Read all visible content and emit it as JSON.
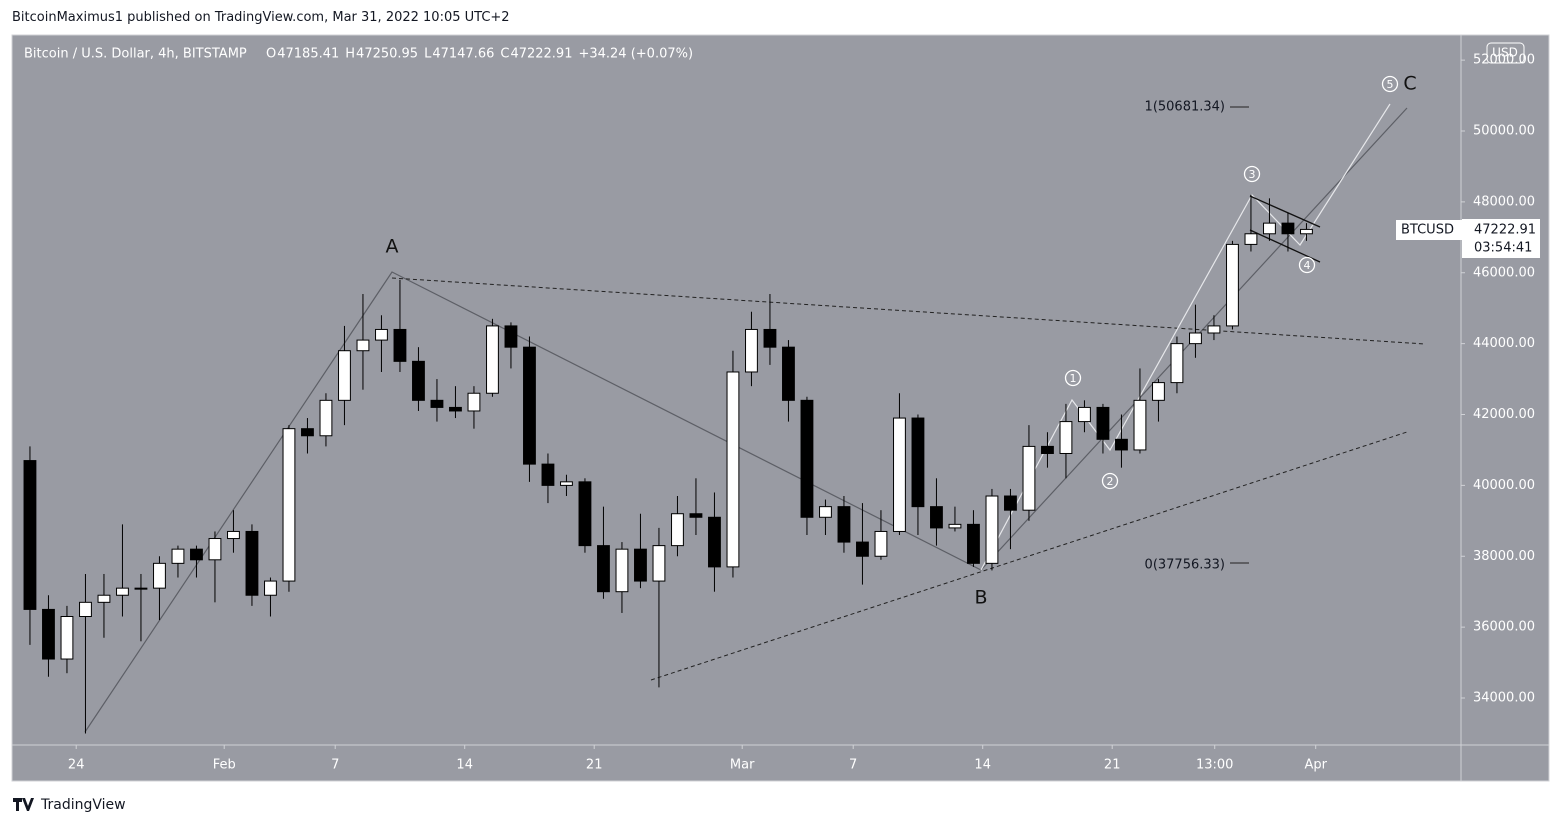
{
  "header": {
    "publisher": "BitcoinMaximus1 published on TradingView.com, Mar 31, 2022 10:05 UTC+2"
  },
  "footer": {
    "brand": "TradingView"
  },
  "chart_data": {
    "type": "candlestick",
    "title": "Bitcoin / U.S. Dollar, 4h, BITSTAMP",
    "legend": {
      "o_label": "O",
      "o": 47185.41,
      "h_label": "H",
      "h": 47250.95,
      "l_label": "L",
      "l": 47147.66,
      "c_label": "C",
      "c": 47222.91,
      "change": "+34.24 (+0.07%)"
    },
    "currency": "USD",
    "symbol": "BTCUSD",
    "last_price": 47222.91,
    "countdown": "03:54:41",
    "x": [
      "2022-01-21",
      "2022-01-22",
      "2022-01-23",
      "2022-01-24",
      "2022-01-25",
      "2022-01-26",
      "2022-01-27",
      "2022-01-28",
      "2022-01-29",
      "2022-01-30",
      "2022-01-31",
      "2022-02-01",
      "2022-02-02",
      "2022-02-03",
      "2022-02-04",
      "2022-02-05",
      "2022-02-06",
      "2022-02-07",
      "2022-02-08",
      "2022-02-09",
      "2022-02-10",
      "2022-02-11",
      "2022-02-12",
      "2022-02-13",
      "2022-02-14",
      "2022-02-15",
      "2022-02-16",
      "2022-02-17",
      "2022-02-18",
      "2022-02-19",
      "2022-02-20",
      "2022-02-21",
      "2022-02-22",
      "2022-02-23",
      "2022-02-24",
      "2022-02-25",
      "2022-02-26",
      "2022-02-27",
      "2022-02-28",
      "2022-03-01",
      "2022-03-02",
      "2022-03-03",
      "2022-03-04",
      "2022-03-05",
      "2022-03-06",
      "2022-03-07",
      "2022-03-08",
      "2022-03-09",
      "2022-03-10",
      "2022-03-11",
      "2022-03-12",
      "2022-03-13",
      "2022-03-14",
      "2022-03-15",
      "2022-03-16",
      "2022-03-17",
      "2022-03-18",
      "2022-03-19",
      "2022-03-20",
      "2022-03-21",
      "2022-03-22",
      "2022-03-23",
      "2022-03-24",
      "2022-03-25",
      "2022-03-26",
      "2022-03-27",
      "2022-03-28",
      "2022-03-29",
      "2022-03-30",
      "2022-03-31"
    ],
    "open": [
      40700,
      36500,
      35100,
      36300,
      36700,
      36900,
      37100,
      37100,
      37800,
      38200,
      37900,
      38500,
      38700,
      36900,
      37300,
      41600,
      41400,
      42400,
      43800,
      44100,
      44400,
      43500,
      42400,
      42200,
      42100,
      42600,
      44500,
      43900,
      40600,
      40000,
      40100,
      38300,
      37000,
      38200,
      37300,
      38300,
      39200,
      39100,
      37700,
      43200,
      44400,
      43900,
      42400,
      39100,
      39400,
      38400,
      38000,
      38700,
      41900,
      39400,
      38800,
      38900,
      37800,
      39700,
      39300,
      41100,
      40900,
      41800,
      42200,
      41300,
      41000,
      42400,
      42900,
      44000,
      44300,
      44500,
      46800,
      47100,
      47400,
      47100
    ],
    "high": [
      41100,
      36900,
      36600,
      37500,
      37500,
      38900,
      37500,
      38000,
      38300,
      38300,
      38700,
      39300,
      38900,
      37400,
      41700,
      41900,
      42600,
      44500,
      45400,
      44800,
      45800,
      43900,
      43000,
      42800,
      42800,
      44700,
      44600,
      44200,
      40900,
      40300,
      40200,
      39400,
      38400,
      39200,
      38800,
      39700,
      40200,
      39800,
      43800,
      44900,
      45400,
      44100,
      42500,
      39600,
      39700,
      39500,
      39300,
      42600,
      42000,
      40200,
      39400,
      39300,
      39900,
      39900,
      41700,
      41500,
      42300,
      42400,
      42300,
      42000,
      43300,
      43000,
      44200,
      45100,
      44800,
      46900,
      48200,
      48100,
      47700,
      47400
    ],
    "low": [
      35500,
      34600,
      34700,
      33000,
      35700,
      36300,
      35600,
      36200,
      37400,
      37400,
      36700,
      38100,
      36600,
      36300,
      37000,
      40900,
      41100,
      41700,
      42700,
      43200,
      43200,
      42100,
      41800,
      41900,
      41600,
      42500,
      43300,
      40100,
      39500,
      39700,
      38100,
      36800,
      36400,
      37100,
      34300,
      38000,
      38600,
      37000,
      37400,
      42800,
      43400,
      41800,
      38600,
      38600,
      38100,
      37200,
      37900,
      38600,
      38600,
      38300,
      38700,
      37700,
      37600,
      38200,
      39000,
      40500,
      40200,
      41500,
      40900,
      40500,
      40900,
      41800,
      42600,
      43600,
      44100,
      44400,
      46600,
      46900,
      46600,
      46900
    ],
    "close": [
      36500,
      35100,
      36300,
      36700,
      36900,
      37100,
      37100,
      37800,
      38200,
      37900,
      38500,
      38700,
      36900,
      37300,
      41600,
      41400,
      42400,
      43800,
      44100,
      44400,
      43500,
      42400,
      42200,
      42100,
      42600,
      44500,
      43900,
      40600,
      40000,
      40100,
      38300,
      37000,
      38200,
      37300,
      38300,
      39200,
      39100,
      37700,
      43200,
      44400,
      43900,
      42400,
      39100,
      39400,
      38400,
      38000,
      38700,
      41900,
      39400,
      38800,
      38900,
      37800,
      39700,
      39300,
      41100,
      40900,
      41800,
      42200,
      41300,
      41000,
      42400,
      42900,
      44000,
      44300,
      44500,
      46800,
      47100,
      47400,
      47100,
      47222.91
    ],
    "up_color": "#ffffff",
    "down_color": "#000000",
    "xlim": [
      "2022-01-20T14:00",
      "2022-04-08T20:30"
    ],
    "xticks": [
      {
        "value": "2022-01-24",
        "label": "24"
      },
      {
        "value": "2022-02-01",
        "label": "Feb"
      },
      {
        "value": "2022-02-07",
        "label": "7"
      },
      {
        "value": "2022-02-14",
        "label": "14"
      },
      {
        "value": "2022-02-21",
        "label": "21"
      },
      {
        "value": "2022-03-01",
        "label": "Mar"
      },
      {
        "value": "2022-03-07",
        "label": "7"
      },
      {
        "value": "2022-03-14",
        "label": "14"
      },
      {
        "value": "2022-03-21",
        "label": "21"
      },
      {
        "value": "2022-03-26T13:00",
        "label": "13:00"
      },
      {
        "value": "2022-04-01",
        "label": "Apr"
      }
    ],
    "ylim": [
      32674,
      52709
    ],
    "yticks": [
      {
        "value": 34000,
        "label": "34000.00"
      },
      {
        "value": 36000,
        "label": "36000.00"
      },
      {
        "value": 38000,
        "label": "38000.00"
      },
      {
        "value": 40000,
        "label": "40000.00"
      },
      {
        "value": 42000,
        "label": "42000.00"
      },
      {
        "value": 44000,
        "label": "44000.00"
      },
      {
        "value": 46000,
        "label": "46000.00"
      },
      {
        "value": 48000,
        "label": "48000.00"
      },
      {
        "value": 50000,
        "label": "50000.00"
      },
      {
        "value": 52000,
        "label": "52000.00"
      }
    ],
    "fib_levels": [
      {
        "value": 50681.34,
        "label": "1(50681.34)"
      },
      {
        "value": 37756.33,
        "label": "0(37756.33)"
      }
    ],
    "annotations": [
      "A",
      "B",
      "C"
    ],
    "wave_labels": [
      "1",
      "2",
      "3",
      "4",
      "5"
    ]
  }
}
